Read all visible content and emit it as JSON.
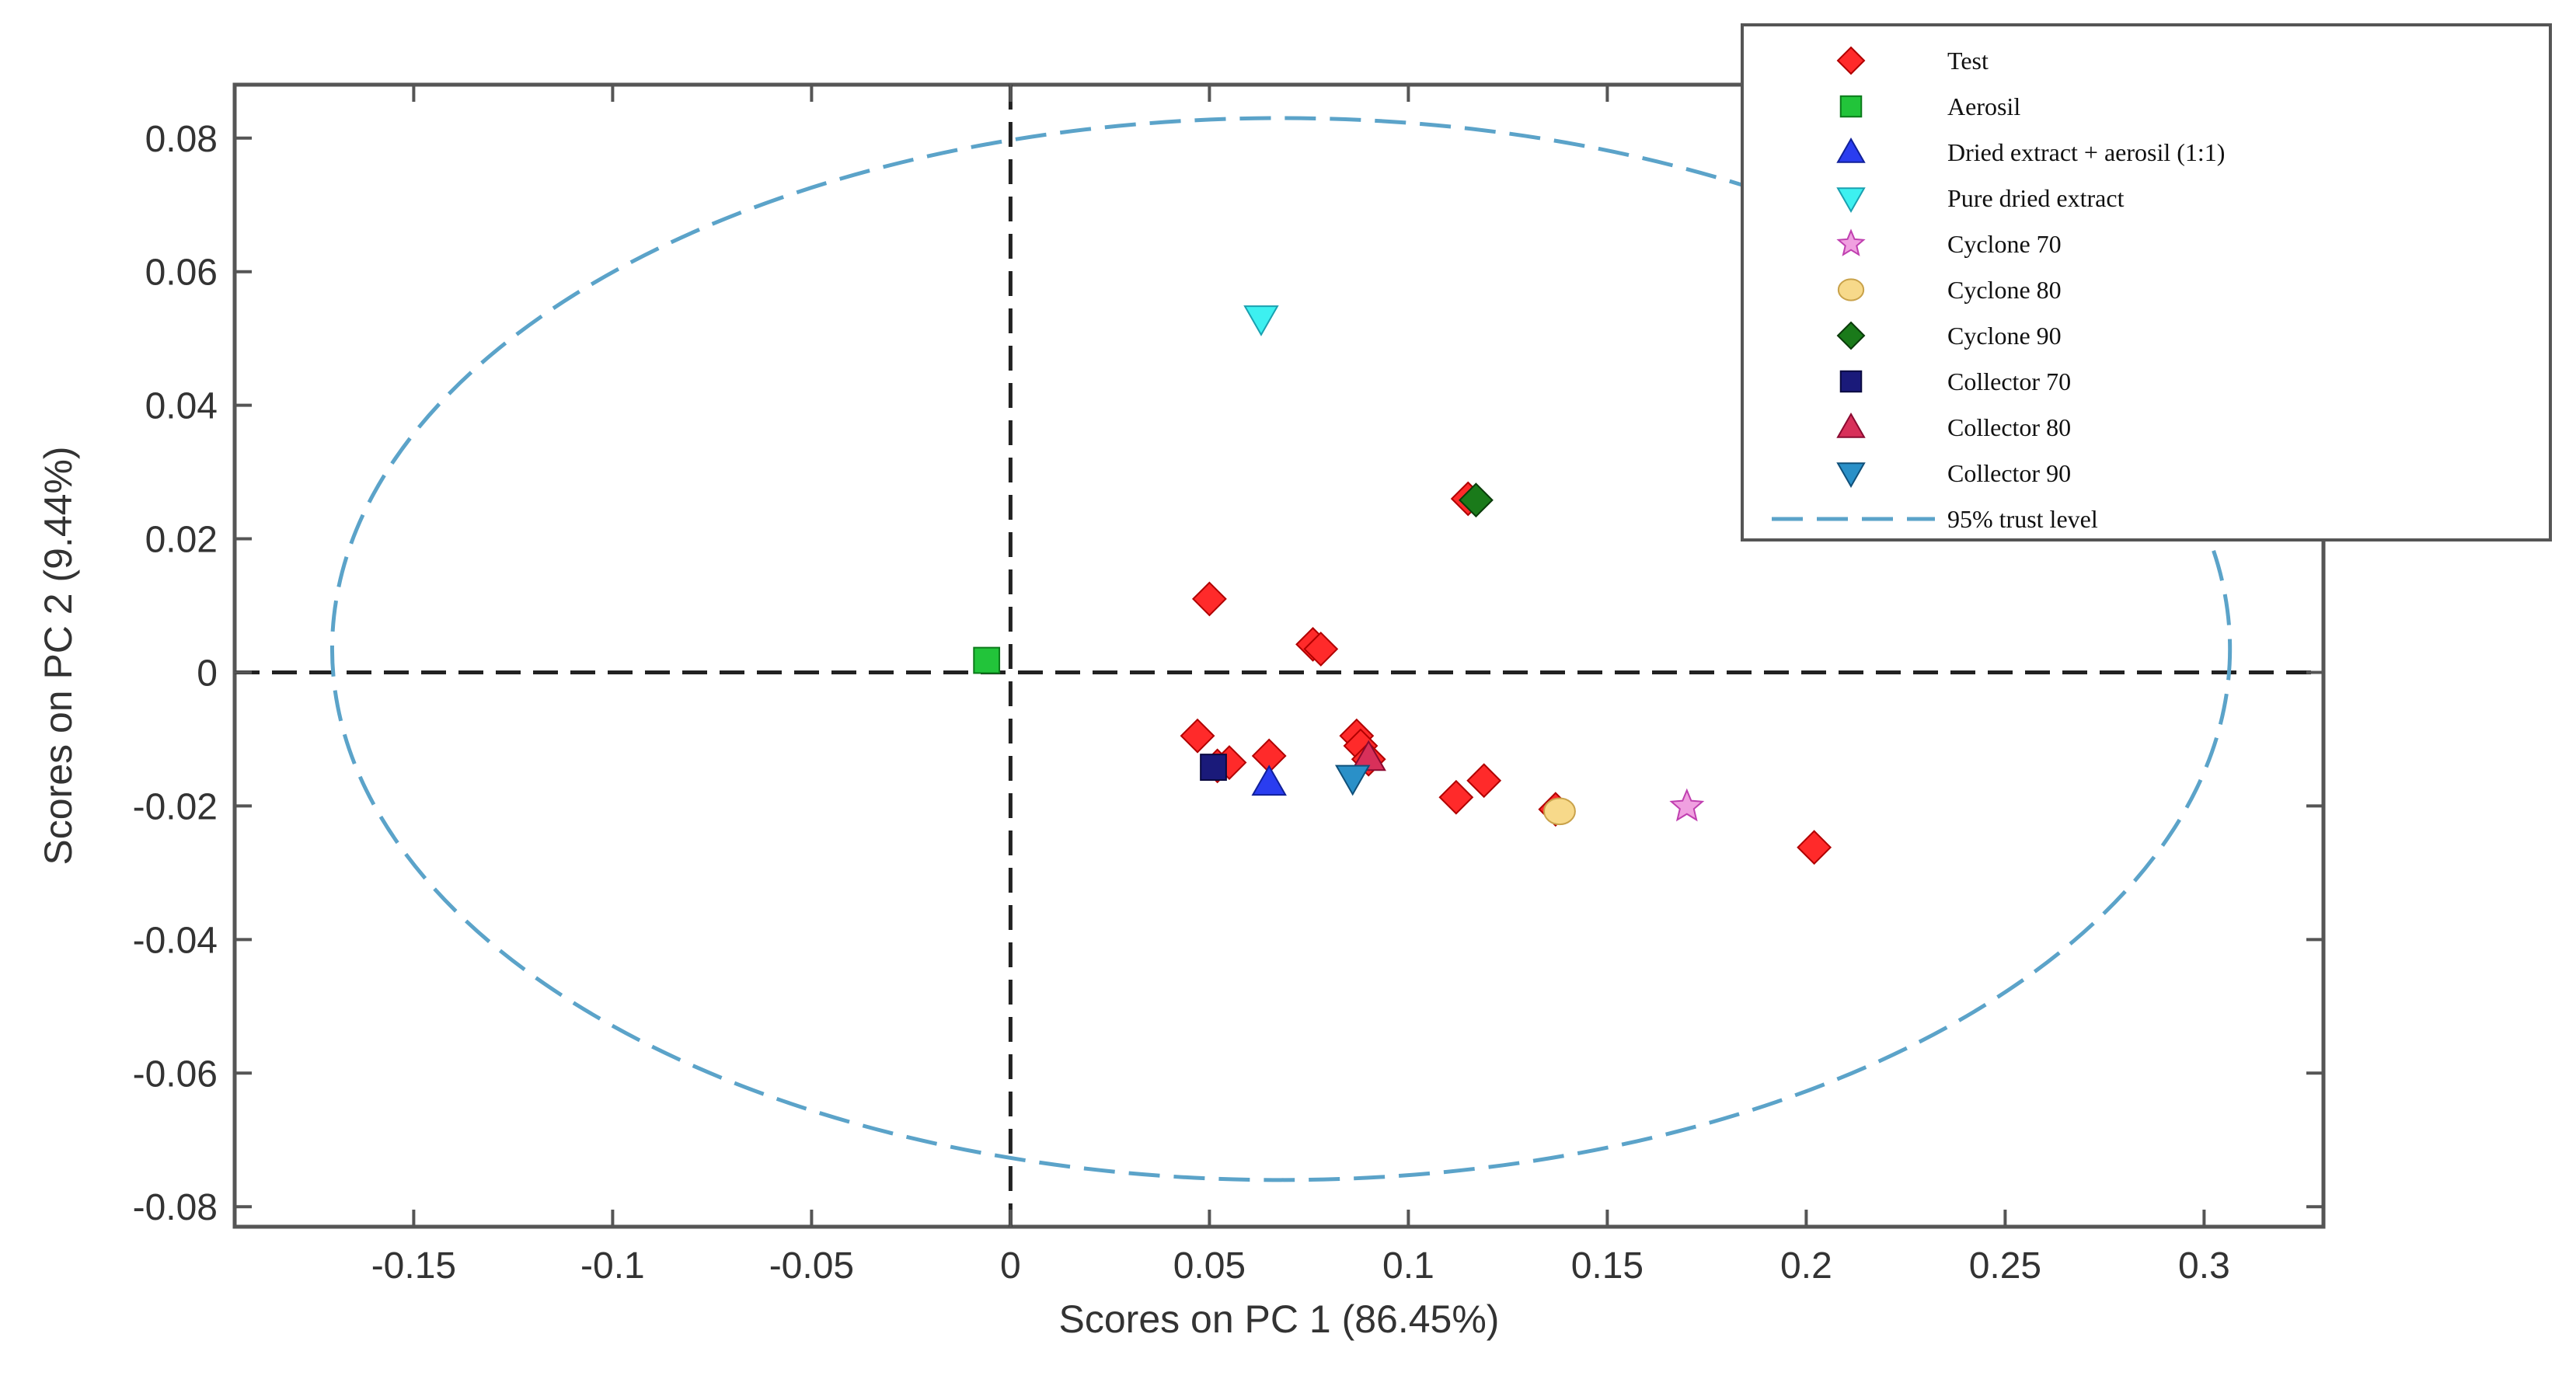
{
  "chart_data": {
    "type": "scatter",
    "xlabel": "Scores on PC 1 (86.45%)",
    "ylabel": "Scores on PC 2 (9.44%)",
    "xlim": [
      -0.195,
      0.33
    ],
    "ylim": [
      -0.083,
      0.088
    ],
    "xticks": [
      -0.15,
      -0.1,
      -0.05,
      0,
      0.05,
      0.1,
      0.15,
      0.2,
      0.25,
      0.3
    ],
    "xtick_labels": [
      "-0.15",
      "-0.1",
      "-0.05",
      "0",
      "0.05",
      "0.1",
      "0.15",
      "0.2",
      "0.25",
      "0.3"
    ],
    "yticks": [
      0.08,
      0.06,
      0.04,
      0.02,
      0,
      -0.02,
      -0.04,
      -0.06,
      -0.08
    ],
    "ytick_labels": [
      "0.08",
      "0.06",
      "0.04",
      "0.02",
      "0",
      "-0.02",
      "-0.04",
      "-0.06",
      "-0.08"
    ],
    "zero_lines": true,
    "confidence_ellipse": {
      "name": "95% trust level",
      "center": [
        0.068,
        0.0035
      ],
      "semi_axis_x": 0.2385,
      "semi_axis_y": 0.0795,
      "color": "#5ba3c9"
    },
    "legend_position": "top-right",
    "series": [
      {
        "name": "Test",
        "marker": "diamond",
        "color": "#ff2a2a",
        "edge": "#b00000",
        "x": [
          0.05,
          0.047,
          0.052,
          0.055,
          0.065,
          0.076,
          0.078,
          0.087,
          0.088,
          0.09,
          0.112,
          0.119,
          0.137,
          0.202,
          0.115
        ],
        "y": [
          0.011,
          -0.0095,
          -0.014,
          -0.0135,
          -0.0125,
          0.0042,
          0.0035,
          -0.0095,
          -0.011,
          -0.013,
          -0.0187,
          -0.0162,
          -0.0205,
          -0.0262,
          0.026
        ]
      },
      {
        "name": "Aerosil",
        "marker": "square",
        "color": "#22c43a",
        "edge": "#0b7a1a",
        "x": [
          -0.006
        ],
        "y": [
          0.0018
        ]
      },
      {
        "name": "Dried extract + aerosil (1:1)",
        "marker": "triangle-up",
        "color": "#2a3df0",
        "edge": "#10209a",
        "x": [
          0.065
        ],
        "y": [
          -0.0165
        ]
      },
      {
        "name": "Pure dried extract",
        "marker": "triangle-down",
        "color": "#3df0f0",
        "edge": "#1aa0b0",
        "x": [
          0.063
        ],
        "y": [
          0.053
        ]
      },
      {
        "name": "Cyclone 70",
        "marker": "star",
        "color": "#f0a0e0",
        "edge": "#c040b0",
        "x": [
          0.17
        ],
        "y": [
          -0.0201
        ]
      },
      {
        "name": "Cyclone 80",
        "marker": "circle",
        "color": "#f7d98a",
        "edge": "#c9a24a",
        "x": [
          0.138
        ],
        "y": [
          -0.0208
        ]
      },
      {
        "name": "Cyclone 90",
        "marker": "diamond",
        "color": "#1a7a1a",
        "edge": "#0a3a0a",
        "x": [
          0.117
        ],
        "y": [
          0.0258
        ]
      },
      {
        "name": "Collector 70",
        "marker": "square",
        "color": "#1a1a7a",
        "edge": "#0a0a40",
        "x": [
          0.051
        ],
        "y": [
          -0.0142
        ]
      },
      {
        "name": "Collector 80",
        "marker": "triangle-up",
        "color": "#d8305a",
        "edge": "#8a0a30",
        "x": [
          0.09
        ],
        "y": [
          -0.0128
        ]
      },
      {
        "name": "Collector 90",
        "marker": "triangle-down",
        "color": "#2a90c8",
        "edge": "#10507a",
        "x": [
          0.086
        ],
        "y": [
          -0.0158
        ]
      }
    ]
  }
}
